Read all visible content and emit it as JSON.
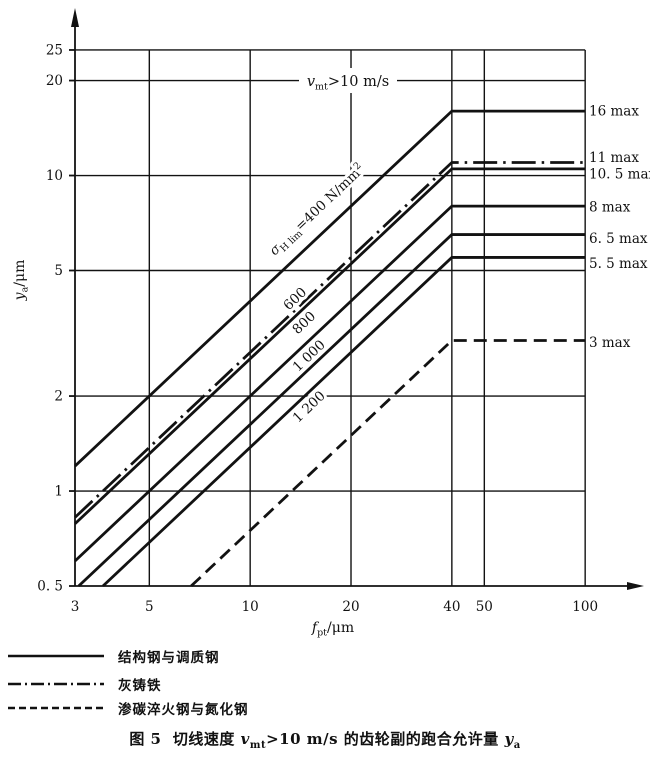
{
  "chart_data": {
    "type": "line",
    "x_scale": "log",
    "y_scale": "log",
    "x_range": [
      3,
      100
    ],
    "y_range": [
      0.5,
      25
    ],
    "knee_x": 40,
    "line_end_x": 100,
    "xlabel": {
      "base": "f",
      "sub": "pt",
      "rest": "/μm"
    },
    "ylabel": {
      "base": "y",
      "sub": "a",
      "rest": "/μm"
    },
    "annotation": {
      "base": "v",
      "sub": "mt",
      "rest": ">10 m/s"
    },
    "x_ticks": [
      {
        "v": 3,
        "label": "3"
      },
      {
        "v": 5,
        "label": "5"
      },
      {
        "v": 10,
        "label": "10"
      },
      {
        "v": 20,
        "label": "20"
      },
      {
        "v": 40,
        "label": "40"
      },
      {
        "v": 50,
        "label": "50"
      },
      {
        "v": 100,
        "label": "100"
      }
    ],
    "y_ticks": [
      {
        "v": 25,
        "label": "25"
      },
      {
        "v": 20,
        "label": "20"
      },
      {
        "v": 10,
        "label": "10"
      },
      {
        "v": 5,
        "label": "5"
      },
      {
        "v": 2,
        "label": "2"
      },
      {
        "v": 1,
        "label": "1"
      },
      {
        "v": 0.5,
        "label": "0. 5"
      }
    ],
    "x_gridlines": [
      5,
      10,
      20,
      40,
      50,
      100
    ],
    "y_gridlines": [
      25,
      20,
      10,
      5,
      2,
      1
    ],
    "series": [
      {
        "id": "s400",
        "style": "solid",
        "max_value": 16,
        "max_label": "16 max",
        "label_parts": {
          "base": "σ",
          "sub": "H lim",
          "rest": "=400 N/mm",
          "sup": "2"
        }
      },
      {
        "id": "cast-iron",
        "style": "dashdot",
        "max_value": 11,
        "max_label": "11 max",
        "label_parts": null
      },
      {
        "id": "s600",
        "style": "solid",
        "max_value": 10.5,
        "max_label": "10. 5 max",
        "label_parts": {
          "rest": "600"
        }
      },
      {
        "id": "s800",
        "style": "solid",
        "max_value": 8,
        "max_label": "8 max",
        "label_parts": {
          "rest": "800"
        }
      },
      {
        "id": "s1000",
        "style": "solid",
        "max_value": 6.5,
        "max_label": "6. 5 max",
        "label_parts": {
          "rest": "1 000"
        }
      },
      {
        "id": "s1200",
        "style": "solid",
        "max_value": 5.5,
        "max_label": "5. 5 max",
        "label_parts": {
          "rest": "1 200"
        }
      },
      {
        "id": "carburized",
        "style": "dashed",
        "max_value": 3,
        "max_label": "3 max",
        "label_parts": null
      }
    ],
    "legend": [
      {
        "style": "solid",
        "label": "结构钢与调质钢"
      },
      {
        "style": "dashdot",
        "label": "灰铸铁"
      },
      {
        "style": "dashed",
        "label": "渗碳淬火钢与氮化钢"
      }
    ],
    "title_parts": {
      "fig": "图 5",
      "pre": "  切线速度 ",
      "var1": "v",
      "var1_sub": "mt",
      "mid": ">10 m/s 的齿轮副的跑合允许量 ",
      "var2": "y",
      "var2_sub": "a"
    },
    "colors": {
      "ink": "#121212",
      "paper": "#ffffff"
    }
  }
}
